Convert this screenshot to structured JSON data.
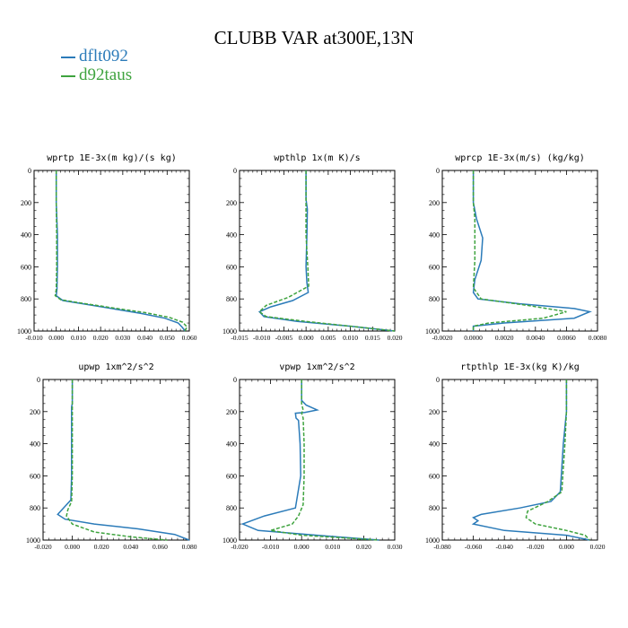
{
  "title": "CLUBB VAR at300E,13N",
  "legend": [
    {
      "label": "dflt092",
      "color": "#2b7bb9"
    },
    {
      "label": "d92taus",
      "color": "#3ea33e"
    }
  ],
  "chart_data": [
    {
      "type": "line",
      "title": "wprtp  1E-3x(m kg)/(s kg)",
      "xlim": [
        -0.01,
        0.06
      ],
      "ylim": [
        1000,
        0
      ],
      "xticks": [
        -0.01,
        0.0,
        0.01,
        0.02,
        0.03,
        0.04,
        0.05,
        0.06
      ],
      "xtick_labels": [
        "-0.010",
        "0.000",
        "0.010",
        "0.020",
        "0.030",
        "0.040",
        "0.050",
        "0.060"
      ],
      "yticks": [
        0,
        200,
        400,
        600,
        800,
        1000
      ],
      "series": [
        {
          "name": "dflt092",
          "x": [
            0.0,
            0.0,
            0.0005,
            0.0005,
            0.0003,
            0.0,
            0.003,
            0.012,
            0.025,
            0.038,
            0.049,
            0.055,
            0.057,
            0.058
          ],
          "y": [
            0,
            200,
            400,
            600,
            740,
            780,
            810,
            830,
            860,
            890,
            920,
            950,
            980,
            1000
          ]
        },
        {
          "name": "d92taus",
          "x": [
            0.0,
            0.0,
            0.0002,
            0.0002,
            0.0,
            -0.0005,
            0.002,
            0.011,
            0.025,
            0.04,
            0.051,
            0.057,
            0.059,
            0.058
          ],
          "y": [
            0,
            200,
            400,
            600,
            740,
            780,
            805,
            825,
            855,
            885,
            915,
            945,
            975,
            1000
          ]
        }
      ]
    },
    {
      "type": "line",
      "title": "wpthlp  1x(m K)/s",
      "xlim": [
        -0.015,
        0.02
      ],
      "ylim": [
        1000,
        0
      ],
      "xticks": [
        -0.015,
        -0.01,
        -0.005,
        0.0,
        0.005,
        0.01,
        0.015,
        0.02
      ],
      "xtick_labels": [
        "-0.015",
        "-0.010",
        "-0.005",
        "0.000",
        "0.005",
        "0.010",
        "0.015",
        "0.020"
      ],
      "yticks": [
        0,
        200,
        400,
        600,
        800,
        1000
      ],
      "series": [
        {
          "name": "dflt092",
          "x": [
            0.0,
            0.0,
            0.0003,
            0.0002,
            0.0,
            0.0002,
            0.0005,
            -0.003,
            -0.008,
            -0.0105,
            -0.0095,
            -0.002,
            0.01,
            0.02
          ],
          "y": [
            0,
            180,
            240,
            400,
            600,
            700,
            760,
            810,
            850,
            880,
            910,
            940,
            970,
            1000
          ]
        },
        {
          "name": "d92taus",
          "x": [
            0.0,
            0.0,
            0.0,
            0.0,
            0.0004,
            0.0006,
            -0.004,
            -0.009,
            -0.0105,
            -0.009,
            0.0,
            0.01,
            0.02
          ],
          "y": [
            0,
            180,
            240,
            400,
            600,
            720,
            790,
            840,
            880,
            910,
            940,
            970,
            1000
          ]
        }
      ]
    },
    {
      "type": "line",
      "title": "wprcp  1E-3x(m/s) (kg/kg)",
      "xlim": [
        -0.002,
        0.008
      ],
      "ylim": [
        1000,
        0
      ],
      "xticks": [
        -0.002,
        0.0,
        0.002,
        0.004,
        0.006,
        0.008
      ],
      "xtick_labels": [
        "-0.0020",
        "0.0000",
        "0.0020",
        "0.0040",
        "0.0060",
        "0.0080"
      ],
      "yticks": [
        0,
        200,
        400,
        600,
        800,
        1000
      ],
      "series": [
        {
          "name": "dflt092",
          "x": [
            0.0,
            0.0,
            0.0002,
            0.0006,
            0.0005,
            0.0001,
            0.0,
            0.0003,
            0.003,
            0.0065,
            0.0075,
            0.0065,
            0.002,
            0.0,
            0.0
          ],
          "y": [
            0,
            200,
            300,
            420,
            560,
            680,
            760,
            800,
            830,
            860,
            880,
            920,
            950,
            970,
            1000
          ]
        },
        {
          "name": "d92taus",
          "x": [
            0.0,
            0.0,
            0.0001,
            0.0001,
            0.0001,
            0.0,
            0.0005,
            0.0035,
            0.006,
            0.0045,
            0.001,
            0.0,
            0.0
          ],
          "y": [
            0,
            200,
            300,
            420,
            560,
            730,
            800,
            840,
            880,
            920,
            950,
            970,
            1000
          ]
        }
      ]
    },
    {
      "type": "line",
      "title": "upwp  1xm^2/s^2",
      "xlim": [
        -0.02,
        0.08
      ],
      "ylim": [
        1000,
        0
      ],
      "xticks": [
        -0.02,
        0.0,
        0.02,
        0.04,
        0.06,
        0.08
      ],
      "xtick_labels": [
        "-0.020",
        "0.000",
        "0.020",
        "0.040",
        "0.060",
        "0.080"
      ],
      "yticks": [
        0,
        200,
        400,
        600,
        800,
        1000
      ],
      "series": [
        {
          "name": "dflt092",
          "x": [
            0.0,
            0.0,
            -0.0005,
            -0.0005,
            -0.0005,
            -0.001,
            -0.006,
            -0.01,
            -0.005,
            0.015,
            0.045,
            0.07,
            0.08
          ],
          "y": [
            0,
            150,
            170,
            400,
            600,
            750,
            800,
            840,
            870,
            900,
            930,
            965,
            1000
          ]
        },
        {
          "name": "d92taus",
          "x": [
            0.0,
            0.0,
            0.0,
            0.0,
            -0.0005,
            -0.003,
            -0.004,
            0.0,
            0.015,
            0.04,
            0.065
          ],
          "y": [
            0,
            170,
            400,
            600,
            760,
            810,
            850,
            900,
            950,
            980,
            1000
          ]
        }
      ]
    },
    {
      "type": "line",
      "title": "vpwp  1xm^2/s^2",
      "xlim": [
        -0.02,
        0.03
      ],
      "ylim": [
        1000,
        0
      ],
      "xticks": [
        -0.02,
        -0.01,
        0.0,
        0.01,
        0.02,
        0.03
      ],
      "xtick_labels": [
        "-0.020",
        "-0.010",
        "0.000",
        "0.010",
        "0.020",
        "0.030"
      ],
      "yticks": [
        0,
        200,
        400,
        600,
        800,
        1000
      ],
      "series": [
        {
          "name": "dflt092",
          "x": [
            0.0,
            0.0,
            0.0015,
            0.005,
            0.001,
            -0.002,
            -0.0018,
            -0.001,
            -0.0005,
            -0.0003,
            -0.002,
            -0.012,
            -0.019,
            -0.014,
            0.005,
            0.025
          ],
          "y": [
            0,
            130,
            160,
            190,
            205,
            210,
            240,
            255,
            400,
            600,
            800,
            850,
            900,
            940,
            970,
            1000
          ]
        },
        {
          "name": "d92taus",
          "x": [
            0.0,
            0.0,
            0.0005,
            0.0,
            0.0005,
            0.0008,
            0.0008,
            0.0005,
            -0.001,
            -0.003,
            -0.01,
            0.0,
            0.025
          ],
          "y": [
            0,
            150,
            190,
            210,
            240,
            400,
            600,
            780,
            850,
            900,
            940,
            970,
            1000
          ]
        }
      ]
    },
    {
      "type": "line",
      "title": "rtpthlp  1E-3x(kg K)/kg",
      "xlim": [
        -0.08,
        0.02
      ],
      "ylim": [
        1000,
        0
      ],
      "xticks": [
        -0.08,
        -0.06,
        -0.04,
        -0.02,
        0.0,
        0.02
      ],
      "xtick_labels": [
        "-0.080",
        "-0.060",
        "-0.040",
        "-0.020",
        "0.000",
        "0.020"
      ],
      "yticks": [
        0,
        200,
        400,
        600,
        800,
        1000
      ],
      "series": [
        {
          "name": "dflt092",
          "x": [
            0.0,
            0.0,
            -0.002,
            -0.003,
            -0.004,
            -0.01,
            -0.03,
            -0.055,
            -0.06,
            -0.057,
            -0.06,
            -0.04,
            0.0,
            0.015
          ],
          "y": [
            0,
            200,
            400,
            550,
            700,
            760,
            800,
            840,
            860,
            880,
            900,
            940,
            970,
            1000
          ]
        },
        {
          "name": "d92taus",
          "x": [
            0.0,
            0.0,
            -0.001,
            -0.002,
            -0.003,
            -0.012,
            -0.025,
            -0.026,
            -0.02,
            0.0,
            0.012,
            0.015
          ],
          "y": [
            0,
            200,
            400,
            550,
            700,
            760,
            820,
            860,
            900,
            940,
            970,
            1000
          ]
        }
      ]
    }
  ]
}
